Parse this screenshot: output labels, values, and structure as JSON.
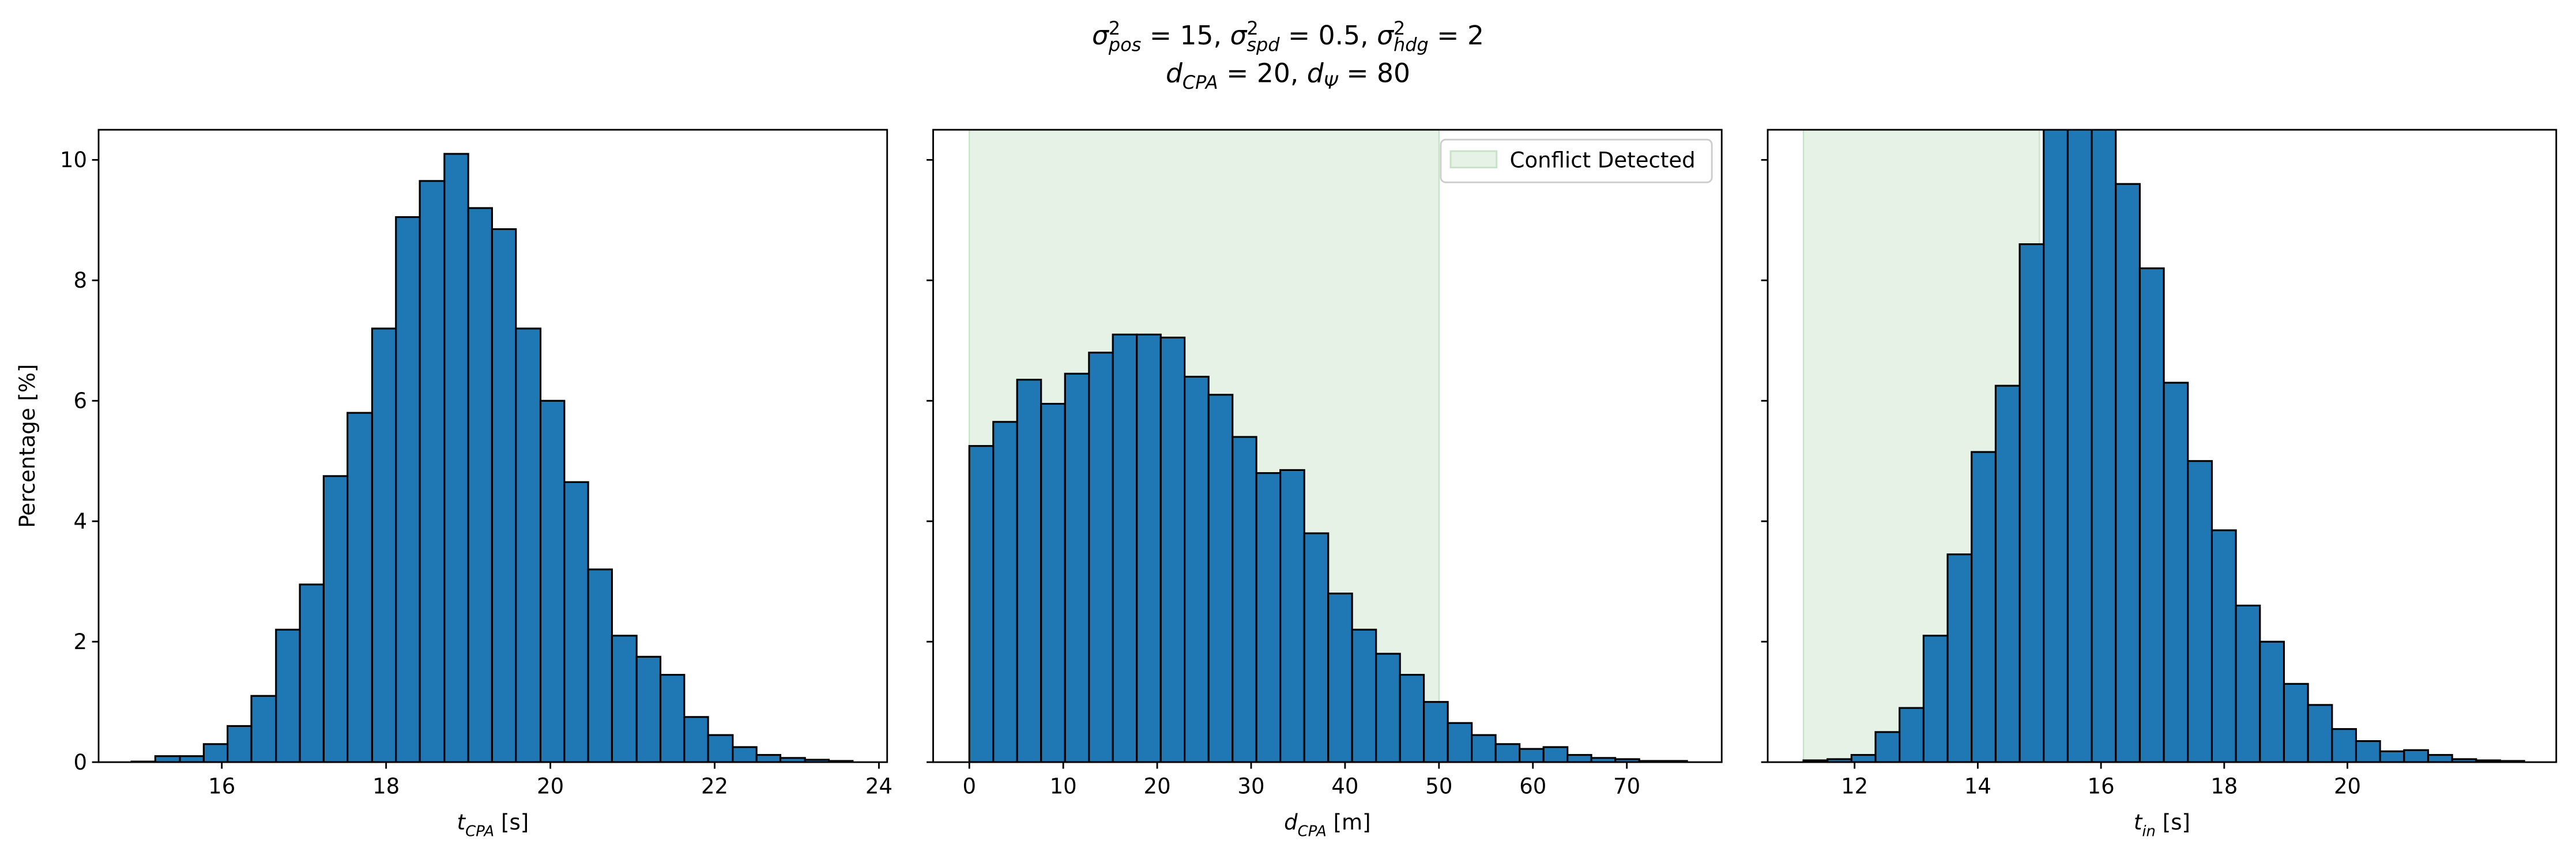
{
  "suptitle": [
    [
      {
        "base": "σ",
        "sup": "2",
        "sub": "pos"
      },
      " = 15, ",
      {
        "base": "σ",
        "sup": "2",
        "sub": "spd"
      },
      " = 0.5, ",
      {
        "base": "σ",
        "sup": "2",
        "sub": "hdg"
      },
      " = 2"
    ],
    [
      {
        "base": "d",
        "sub": "CPA"
      },
      " = 20, ",
      {
        "base": "d",
        "sub": "Ψ"
      },
      " = 80"
    ]
  ],
  "chart_data": [
    {
      "type": "histogram",
      "color": "#1f77b4",
      "edgecolor": "#000000",
      "xlabel": [
        {
          "base": "t",
          "sub": "CPA"
        },
        " [s]"
      ],
      "ylabel": "Percentage [%]",
      "bins": [
        14.9,
        15.19,
        15.49,
        15.78,
        16.07,
        16.36,
        16.66,
        16.95,
        17.24,
        17.53,
        17.83,
        18.12,
        18.41,
        18.71,
        19.0,
        19.29,
        19.58,
        19.88,
        20.17,
        20.46,
        20.75,
        21.05,
        21.34,
        21.63,
        21.92,
        22.22,
        22.51,
        22.8,
        23.1,
        23.39,
        23.68
      ],
      "values": [
        0.01,
        0.1,
        0.1,
        0.3,
        0.6,
        1.1,
        2.2,
        2.95,
        4.75,
        5.8,
        7.2,
        9.05,
        9.65,
        10.1,
        9.2,
        8.85,
        7.2,
        6.0,
        4.65,
        3.2,
        2.1,
        1.75,
        1.45,
        0.75,
        0.45,
        0.25,
        0.12,
        0.07,
        0.04,
        0.02
      ],
      "xlim": [
        14.5,
        24.1
      ],
      "xticks": [
        16,
        18,
        20,
        22,
        24
      ],
      "ylim": [
        0,
        10.5
      ],
      "yticks": [
        0,
        2,
        4,
        6,
        8,
        10
      ]
    },
    {
      "type": "histogram",
      "color": "#1f77b4",
      "edgecolor": "#000000",
      "xlabel": [
        {
          "base": "d",
          "sub": "CPA"
        },
        " [m]"
      ],
      "bins": [
        0,
        2.55,
        5.09,
        7.64,
        10.19,
        12.74,
        15.28,
        17.83,
        20.38,
        22.92,
        25.47,
        28.02,
        30.56,
        33.11,
        35.66,
        38.21,
        40.75,
        43.3,
        45.85,
        48.39,
        50.94,
        53.49,
        56.03,
        58.58,
        61.13,
        63.68,
        66.22,
        68.77,
        71.32,
        73.86,
        76.41
      ],
      "values": [
        5.25,
        5.65,
        6.35,
        5.95,
        6.45,
        6.8,
        7.1,
        7.1,
        7.05,
        6.4,
        6.1,
        5.4,
        4.8,
        4.85,
        3.8,
        2.8,
        2.2,
        1.8,
        1.45,
        1.0,
        0.65,
        0.45,
        0.3,
        0.22,
        0.25,
        0.12,
        0.07,
        0.05,
        0.02,
        0.02
      ],
      "shaded_region": [
        0,
        50
      ],
      "shade_color": "#e6f2e6",
      "shade_edge": "#c8e2c8",
      "legend": {
        "label": "Conflict Detected",
        "loc": "upper right"
      },
      "xlim": [
        -3.85,
        80.1
      ],
      "xticks": [
        0,
        10,
        20,
        30,
        40,
        50,
        60,
        70
      ],
      "ylim": [
        0,
        10.5
      ],
      "yticks": [
        0,
        2,
        4,
        6,
        8,
        10
      ]
    },
    {
      "type": "histogram",
      "color": "#1f77b4",
      "edgecolor": "#000000",
      "xlabel": [
        {
          "base": "t",
          "sub": "in"
        },
        " [s]"
      ],
      "bins": [
        11.17,
        11.56,
        11.95,
        12.34,
        12.73,
        13.12,
        13.51,
        13.9,
        14.29,
        14.68,
        15.07,
        15.46,
        15.85,
        16.24,
        16.63,
        17.02,
        17.41,
        17.8,
        18.19,
        18.58,
        18.97,
        19.36,
        19.75,
        20.14,
        20.53,
        20.92,
        21.31,
        21.7,
        22.09,
        22.48,
        22.87
      ],
      "values": [
        0.03,
        0.05,
        0.12,
        0.5,
        0.9,
        2.1,
        3.45,
        5.15,
        6.25,
        8.6,
        10.6,
        11.0,
        10.7,
        9.6,
        8.2,
        6.3,
        5.0,
        3.85,
        2.6,
        2.0,
        1.3,
        0.95,
        0.55,
        0.35,
        0.18,
        0.2,
        0.12,
        0.05,
        0.03,
        0.02
      ],
      "shaded_region": [
        11.17,
        15.0
      ],
      "shade_color": "#e6f2e6",
      "shade_edge": "#c8e2c8",
      "xlim": [
        10.59,
        23.39
      ],
      "xticks": [
        12,
        14,
        16,
        18,
        20
      ],
      "ylim": [
        0,
        10.5
      ],
      "yticks": [
        0,
        2,
        4,
        6,
        8,
        10
      ]
    }
  ]
}
